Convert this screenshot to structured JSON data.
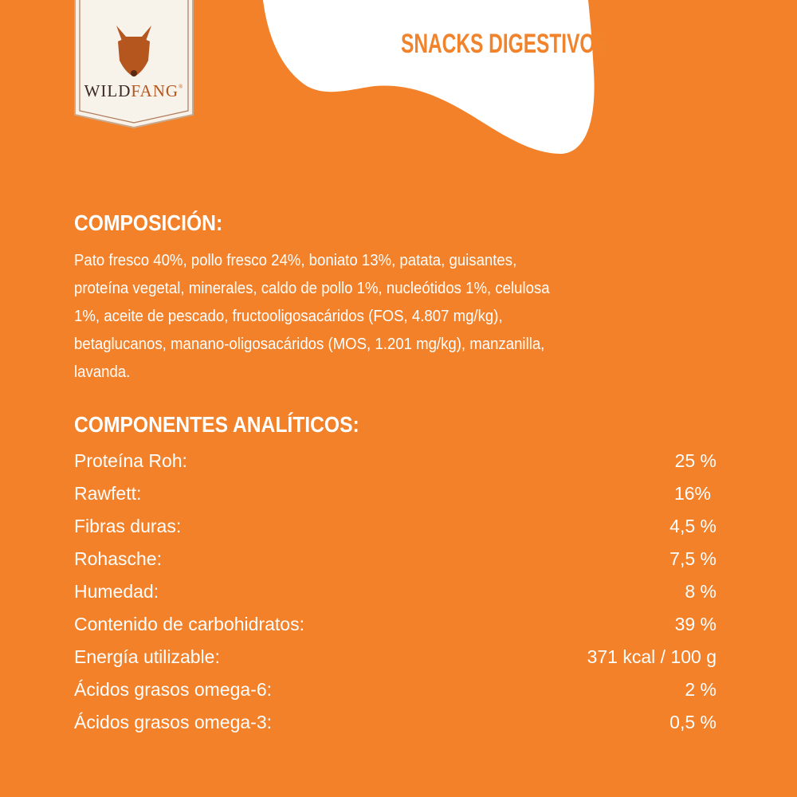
{
  "brand": {
    "logo_text": "WILDFANG",
    "logo_text_dark": "WILD",
    "logo_text_accent": "FANG",
    "registered": "®",
    "badge_icon": "wolf-head-icon"
  },
  "header": {
    "title": "SNACKS DIGESTIVOS"
  },
  "composition": {
    "heading": "COMPOSICIÓN:",
    "lines": [
      "Pato fresco 40%, pollo fresco 24%, boniato 13%, patata, guisantes,",
      "proteína vegetal, minerales, caldo de pollo 1%, nucleótidos 1%, celulosa",
      "1%, aceite de pescado, fructooligosacáridos (FOS, 4.807 mg/kg),",
      "betaglucanos, manano-oligosacáridos (MOS, 1.201 mg/kg), manzanilla,",
      "lavanda."
    ]
  },
  "analytics": {
    "heading": "COMPONENTES ANALÍTICOS:",
    "rows": [
      {
        "label": "Proteína Roh:",
        "value": "25 %"
      },
      {
        "label": "Rawfett:",
        "value": "16%"
      },
      {
        "label": "Fibras duras:",
        "value": "4,5 %"
      },
      {
        "label": "Rohasche:",
        "value": "7,5 %"
      },
      {
        "label": "Humedad:",
        "value": "8 %"
      },
      {
        "label": "Contenido de carbohidratos:",
        "value": "39 %"
      },
      {
        "label": "Energía utilizable:",
        "value": "371 kcal / 100 g"
      },
      {
        "label": "Ácidos grasos omega-6:",
        "value": "2 %"
      },
      {
        "label": "Ácidos grasos omega-3:",
        "value": "0,5 %"
      }
    ]
  },
  "colors": {
    "background": "#f2812a",
    "accent": "#f0832b",
    "badge": "#f8f3ea",
    "logo_brown": "#b5561f"
  }
}
